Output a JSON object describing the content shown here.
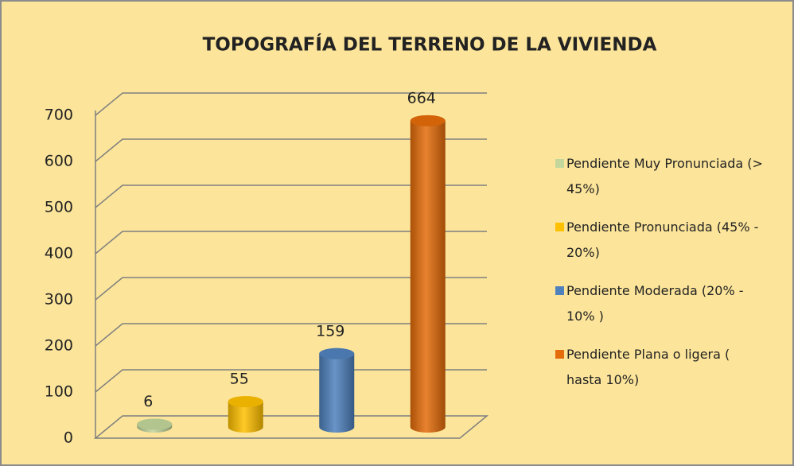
{
  "chart_data": {
    "type": "bar",
    "title": "TOPOGRAFÍA DEL TERRENO DE LA VIVIENDA",
    "categories": [
      "Pendiente Muy Pronunciada (> 45%)",
      "Pendiente Pronunciada (45% - 20%)",
      "Pendiente Moderada (20% - 10% )",
      "Pendiente Plana o ligera ( hasta 10%)"
    ],
    "values": [
      6,
      55,
      159,
      664
    ],
    "colors": [
      "#c3d69b",
      "#ffc000",
      "#4f81bd",
      "#e46c0a"
    ],
    "ylim": [
      0,
      700
    ],
    "yticks": [
      0,
      100,
      200,
      300,
      400,
      500,
      600,
      700
    ],
    "grid": true,
    "legend": "right"
  }
}
